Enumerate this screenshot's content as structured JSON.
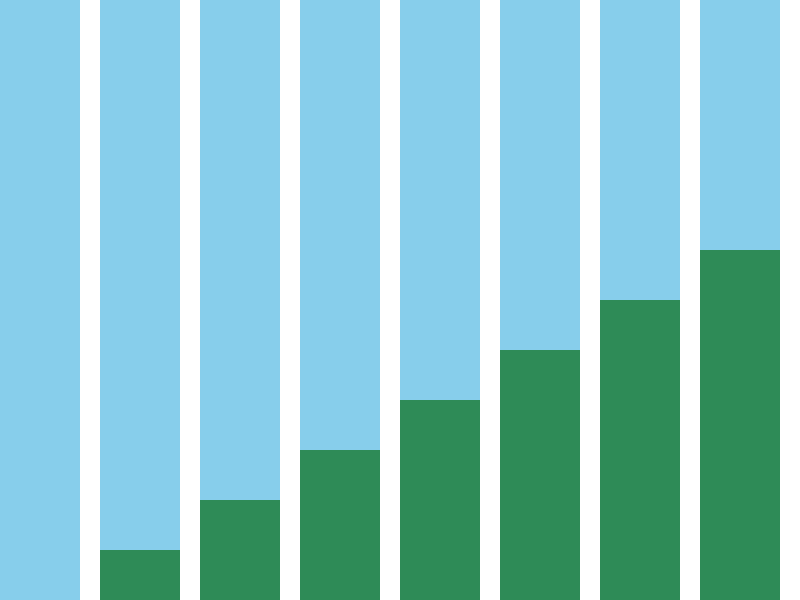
{
  "chart_data": {
    "type": "stacked-bar",
    "categories": [
      null,
      null,
      null,
      null,
      null,
      null,
      null,
      null
    ],
    "series": [
      {
        "color": "#2e8b57",
        "values": [
          0,
          1,
          2,
          3,
          4,
          5,
          6,
          7
        ]
      },
      {
        "color": "#87ceeb",
        "values": [
          12,
          11,
          10,
          9,
          8,
          7,
          6,
          5
        ]
      }
    ],
    "ylim": [
      0,
      12
    ]
  }
}
